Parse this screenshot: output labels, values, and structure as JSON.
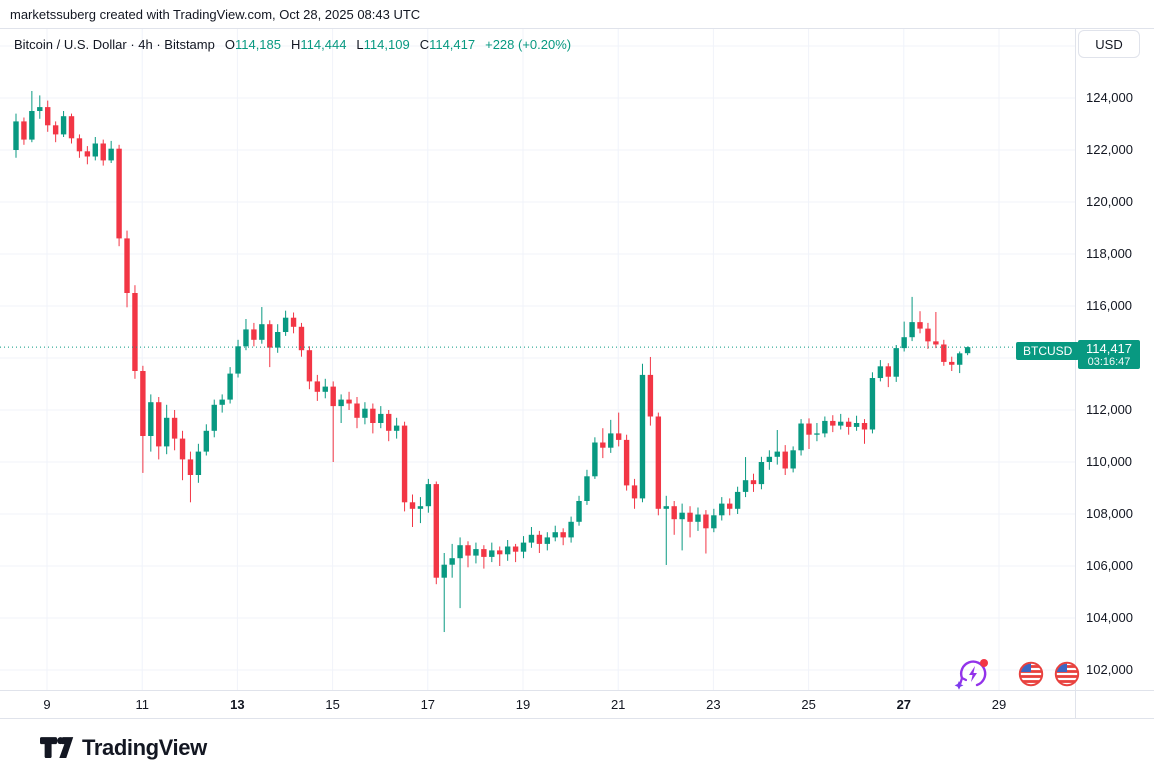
{
  "attribution": "marketssuberg created with TradingView.com, Oct 28, 2025 08:43 UTC",
  "legend": {
    "title": "Bitcoin / U.S. Dollar · 4h · Bitstamp",
    "o_label": "O",
    "o_value": "114,185",
    "h_label": "H",
    "h_value": "114,444",
    "l_label": "L",
    "l_value": "114,109",
    "c_label": "C",
    "c_value": "114,417",
    "change": "+228 (+0.20%)"
  },
  "currency_button": "USD",
  "price_badge": {
    "symbol": "BTCUSD",
    "price": "114,417",
    "countdown": "03:16:47"
  },
  "footer": {
    "brand": "TradingView"
  },
  "colors": {
    "up": "#089981",
    "down": "#F23645",
    "grid": "#F0F3FA",
    "axis_border": "#E0E3EB",
    "text": "#131722",
    "accent_purple": "#9333EA",
    "flag_red": "#E8413E",
    "flag_blue": "#3B67C4"
  },
  "price_axis": {
    "gridline_values": [
      126000,
      124000,
      122000,
      120000,
      118000,
      116000,
      114000,
      112000,
      110000,
      108000,
      106000,
      104000,
      102000
    ],
    "labels": [
      {
        "text": "124,000",
        "value": 124000
      },
      {
        "text": "122,000",
        "value": 122000
      },
      {
        "text": "120,000",
        "value": 120000
      },
      {
        "text": "118,000",
        "value": 118000
      },
      {
        "text": "116,000",
        "value": 116000
      },
      {
        "text": "112,000",
        "value": 112000
      },
      {
        "text": "110,000",
        "value": 110000
      },
      {
        "text": "108,000",
        "value": 108000
      },
      {
        "text": "106,000",
        "value": 106000
      },
      {
        "text": "104,000",
        "value": 104000
      },
      {
        "text": "102,000",
        "value": 102000
      }
    ]
  },
  "time_axis": {
    "ticks": [
      {
        "label": "9",
        "bold": false
      },
      {
        "label": "11",
        "bold": false
      },
      {
        "label": "13",
        "bold": true
      },
      {
        "label": "15",
        "bold": false
      },
      {
        "label": "17",
        "bold": false
      },
      {
        "label": "19",
        "bold": false
      },
      {
        "label": "21",
        "bold": false
      },
      {
        "label": "23",
        "bold": false
      },
      {
        "label": "25",
        "bold": false
      },
      {
        "label": "27",
        "bold": true
      },
      {
        "label": "29",
        "bold": false
      }
    ]
  },
  "chart_icons": [
    "ai-refresh-event-icon",
    "us-flag-event-icon",
    "us-flag-event-icon"
  ],
  "chart_data": {
    "type": "candlestick",
    "title": "Bitcoin / U.S. Dollar",
    "symbol": "BTCUSD",
    "exchange": "Bitstamp",
    "timeframe": "4h",
    "x_range": [
      "Oct 8, 2025 08:00 UTC",
      "Oct 28, 2025 08:00 UTC"
    ],
    "y_range": [
      101500,
      126500
    ],
    "grid": true,
    "last_price": 114417,
    "price_line": {
      "value": 114417,
      "style": "dotted",
      "color": "#089981"
    },
    "ohlc_last": {
      "open": 114185,
      "high": 114444,
      "low": 114109,
      "close": 114417,
      "change": 228,
      "change_pct": 0.2
    },
    "candles": [
      [
        122000,
        123400,
        121700,
        123100
      ],
      [
        123100,
        123250,
        122200,
        122400
      ],
      [
        122400,
        124270,
        122300,
        123500
      ],
      [
        123500,
        124100,
        123200,
        123650
      ],
      [
        123650,
        123900,
        122700,
        122950
      ],
      [
        122950,
        123100,
        122300,
        122600
      ],
      [
        122600,
        123500,
        122500,
        123300
      ],
      [
        123300,
        123400,
        122250,
        122450
      ],
      [
        122450,
        122600,
        121700,
        121950
      ],
      [
        121950,
        122150,
        121450,
        121750
      ],
      [
        121750,
        122500,
        121600,
        122250
      ],
      [
        122250,
        122400,
        121400,
        121600
      ],
      [
        121600,
        122350,
        121500,
        122050
      ],
      [
        122050,
        122200,
        118300,
        118600
      ],
      [
        118600,
        118900,
        115950,
        116500
      ],
      [
        116500,
        116800,
        113200,
        113500
      ],
      [
        113500,
        113700,
        109580,
        111000
      ],
      [
        111000,
        112600,
        110400,
        112300
      ],
      [
        112300,
        112500,
        110100,
        110600
      ],
      [
        110600,
        112200,
        110300,
        111700
      ],
      [
        111700,
        112000,
        110450,
        110900
      ],
      [
        110900,
        111200,
        109300,
        110100
      ],
      [
        110100,
        110400,
        108450,
        109500
      ],
      [
        109500,
        110700,
        109200,
        110400
      ],
      [
        110400,
        111450,
        110250,
        111200
      ],
      [
        111200,
        112400,
        110950,
        112200
      ],
      [
        112200,
        112600,
        111900,
        112400
      ],
      [
        112400,
        113650,
        112250,
        113400
      ],
      [
        113400,
        114700,
        113250,
        114450
      ],
      [
        114450,
        115500,
        114300,
        115100
      ],
      [
        115100,
        115350,
        114450,
        114700
      ],
      [
        114700,
        115960,
        114550,
        115300
      ],
      [
        115300,
        115450,
        113650,
        114400
      ],
      [
        114400,
        115300,
        114200,
        115000
      ],
      [
        115000,
        115820,
        114850,
        115550
      ],
      [
        115550,
        115750,
        114950,
        115200
      ],
      [
        115200,
        115350,
        114050,
        114300
      ],
      [
        114300,
        114450,
        112800,
        113100
      ],
      [
        113100,
        113350,
        112350,
        112700
      ],
      [
        112700,
        113200,
        112450,
        112900
      ],
      [
        112900,
        113100,
        110000,
        112150
      ],
      [
        112150,
        112600,
        111500,
        112400
      ],
      [
        112400,
        112700,
        112000,
        112250
      ],
      [
        112250,
        112500,
        111300,
        111700
      ],
      [
        111700,
        112300,
        111450,
        112050
      ],
      [
        112050,
        112250,
        111100,
        111500
      ],
      [
        111500,
        112150,
        111300,
        111850
      ],
      [
        111850,
        112000,
        110800,
        111200
      ],
      [
        111200,
        111700,
        110900,
        111400
      ],
      [
        111400,
        111550,
        108100,
        108450
      ],
      [
        108450,
        108750,
        107500,
        108200
      ],
      [
        108200,
        108650,
        107650,
        108300
      ],
      [
        108300,
        109350,
        108050,
        109150
      ],
      [
        109150,
        109250,
        105300,
        105550
      ],
      [
        105550,
        106500,
        103460,
        106050
      ],
      [
        106050,
        106850,
        105550,
        106300
      ],
      [
        106300,
        107100,
        104380,
        106800
      ],
      [
        106800,
        106950,
        105950,
        106400
      ],
      [
        106400,
        106900,
        106100,
        106650
      ],
      [
        106650,
        106800,
        105900,
        106350
      ],
      [
        106350,
        106900,
        106150,
        106600
      ],
      [
        106600,
        106750,
        106000,
        106450
      ],
      [
        106450,
        107000,
        106200,
        106750
      ],
      [
        106750,
        106850,
        106150,
        106550
      ],
      [
        106550,
        107150,
        106300,
        106900
      ],
      [
        106900,
        107500,
        106700,
        107200
      ],
      [
        107200,
        107350,
        106500,
        106850
      ],
      [
        106850,
        107300,
        106600,
        107100
      ],
      [
        107100,
        107550,
        106950,
        107300
      ],
      [
        107300,
        107450,
        106800,
        107100
      ],
      [
        107100,
        107900,
        106900,
        107700
      ],
      [
        107700,
        108700,
        107550,
        108500
      ],
      [
        108500,
        109700,
        108350,
        109450
      ],
      [
        109450,
        110950,
        109350,
        110750
      ],
      [
        110750,
        111300,
        110150,
        110550
      ],
      [
        110550,
        111620,
        110350,
        111100
      ],
      [
        111100,
        111900,
        110600,
        110850
      ],
      [
        110850,
        111050,
        108900,
        109100
      ],
      [
        109100,
        109350,
        108200,
        108600
      ],
      [
        108600,
        113780,
        108450,
        113350
      ],
      [
        113350,
        114040,
        111400,
        111750
      ],
      [
        111750,
        111900,
        107950,
        108200
      ],
      [
        108200,
        108700,
        106040,
        108300
      ],
      [
        108300,
        108500,
        107200,
        107800
      ],
      [
        107800,
        108400,
        106600,
        108050
      ],
      [
        108050,
        108300,
        107100,
        107700
      ],
      [
        107700,
        108250,
        107350,
        107980
      ],
      [
        107980,
        108150,
        106480,
        107450
      ],
      [
        107450,
        108200,
        107300,
        107950
      ],
      [
        107950,
        108650,
        107750,
        108400
      ],
      [
        108400,
        108600,
        107950,
        108200
      ],
      [
        108200,
        109050,
        108000,
        108850
      ],
      [
        108850,
        110190,
        108650,
        109300
      ],
      [
        109300,
        109550,
        108850,
        109150
      ],
      [
        109150,
        110200,
        108950,
        110000
      ],
      [
        110000,
        110450,
        109700,
        110200
      ],
      [
        110200,
        111230,
        109900,
        110400
      ],
      [
        110400,
        110650,
        109500,
        109750
      ],
      [
        109750,
        110600,
        109600,
        110450
      ],
      [
        110450,
        111650,
        110250,
        111480
      ],
      [
        111480,
        111680,
        110500,
        111050
      ],
      [
        111050,
        111500,
        110800,
        111100
      ],
      [
        111100,
        111750,
        110950,
        111580
      ],
      [
        111580,
        111800,
        111150,
        111400
      ],
      [
        111400,
        111850,
        111250,
        111550
      ],
      [
        111550,
        111700,
        111050,
        111350
      ],
      [
        111350,
        111780,
        111200,
        111500
      ],
      [
        111500,
        111650,
        110700,
        111250
      ],
      [
        111250,
        113450,
        111100,
        113230
      ],
      [
        113230,
        113920,
        113100,
        113680
      ],
      [
        113680,
        113800,
        112880,
        113280
      ],
      [
        113280,
        114500,
        113080,
        114380
      ],
      [
        114380,
        115400,
        114250,
        114800
      ],
      [
        114800,
        116350,
        114650,
        115380
      ],
      [
        115380,
        115800,
        114950,
        115130
      ],
      [
        115130,
        115350,
        114350,
        114640
      ],
      [
        114640,
        115770,
        114380,
        114520
      ],
      [
        114520,
        114700,
        113700,
        113850
      ],
      [
        113850,
        114050,
        113500,
        113740
      ],
      [
        113740,
        114250,
        113420,
        114180
      ],
      [
        114185,
        114444,
        114109,
        114417
      ]
    ]
  }
}
